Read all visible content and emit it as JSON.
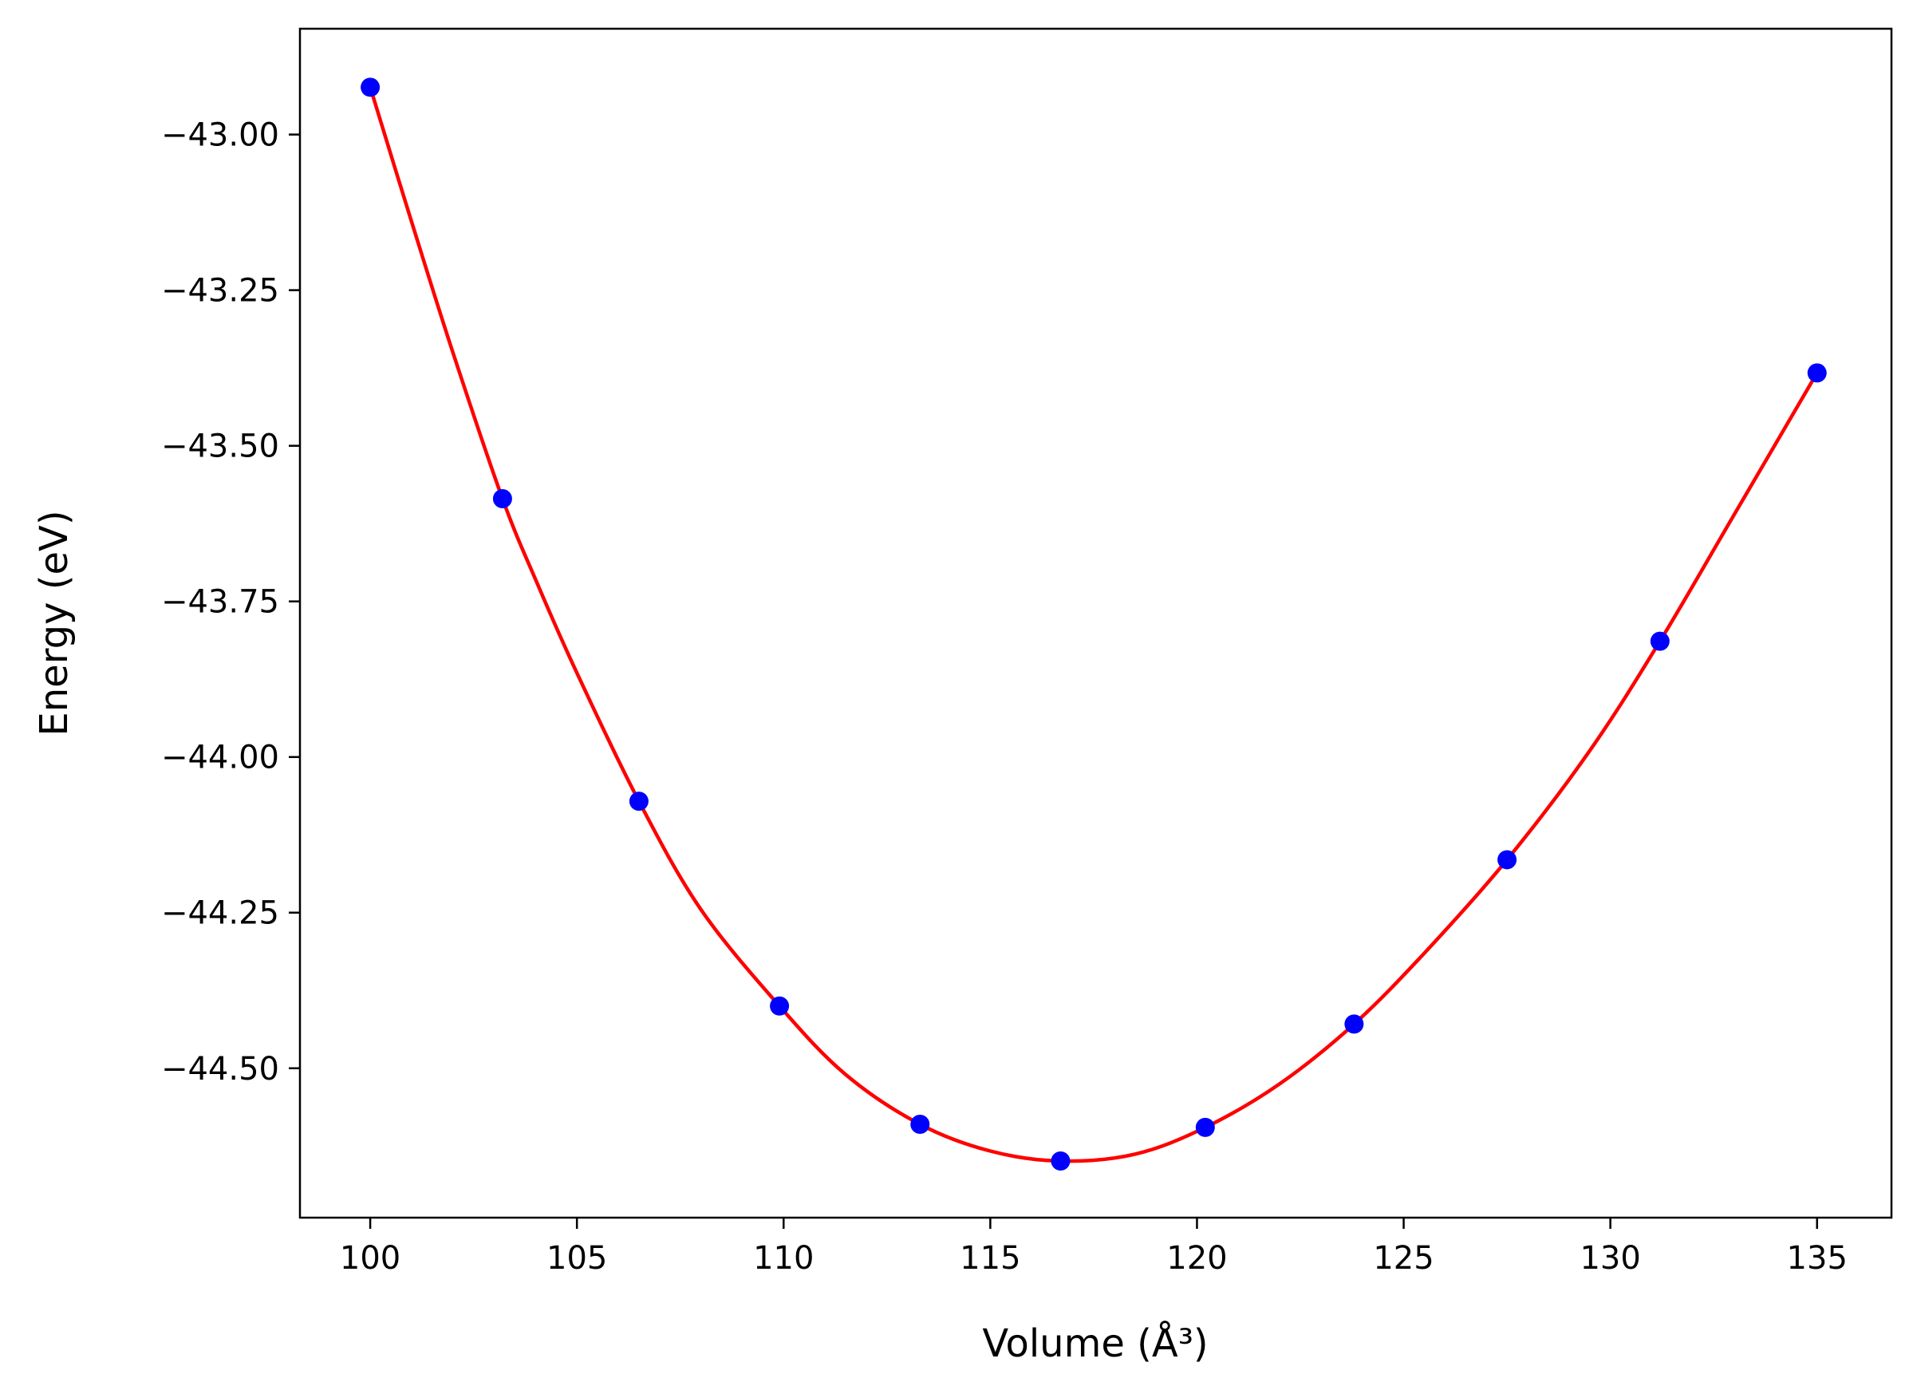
{
  "chart_data": {
    "type": "scatter",
    "xlabel": "Volume (Å³)",
    "ylabel": "Energy (eV)",
    "xlim": [
      98.3,
      136.8
    ],
    "ylim": [
      -44.74,
      -42.83
    ],
    "xticks": [
      100,
      105,
      110,
      115,
      120,
      125,
      130,
      135
    ],
    "yticks": [
      -43.0,
      -43.25,
      -43.5,
      -43.75,
      -44.0,
      -44.25,
      -44.5
    ],
    "ytick_labels": [
      "−43.00",
      "−43.25",
      "−43.50",
      "−43.75",
      "−44.00",
      "−44.25",
      "−44.50"
    ],
    "grid": false,
    "legend": false,
    "series": [
      {
        "kind": "points",
        "color": "#0000ff",
        "x": [
          100.0,
          103.2,
          106.5,
          109.9,
          113.3,
          116.7,
          120.2,
          123.8,
          127.5,
          131.2,
          135.0
        ],
        "y": [
          -42.924,
          -43.585,
          -44.071,
          -44.4,
          -44.59,
          -44.649,
          -44.595,
          -44.429,
          -44.165,
          -43.814,
          -43.383
        ]
      },
      {
        "kind": "fit-line",
        "color": "#ff0000",
        "x": [
          100.0,
          101.0,
          102.0,
          103.2,
          104.0,
          105.0,
          106.5,
          108.0,
          109.9,
          111.5,
          113.3,
          115.0,
          116.7,
          118.5,
          120.2,
          122.0,
          123.8,
          125.5,
          127.5,
          129.5,
          131.2,
          133.0,
          135.0
        ],
        "y": [
          -42.924,
          -43.14,
          -43.35,
          -43.585,
          -43.715,
          -43.865,
          -44.071,
          -44.245,
          -44.4,
          -44.51,
          -44.59,
          -44.633,
          -44.649,
          -44.638,
          -44.595,
          -44.525,
          -44.429,
          -44.315,
          -44.165,
          -43.99,
          -43.814,
          -43.61,
          -43.383
        ]
      }
    ]
  }
}
